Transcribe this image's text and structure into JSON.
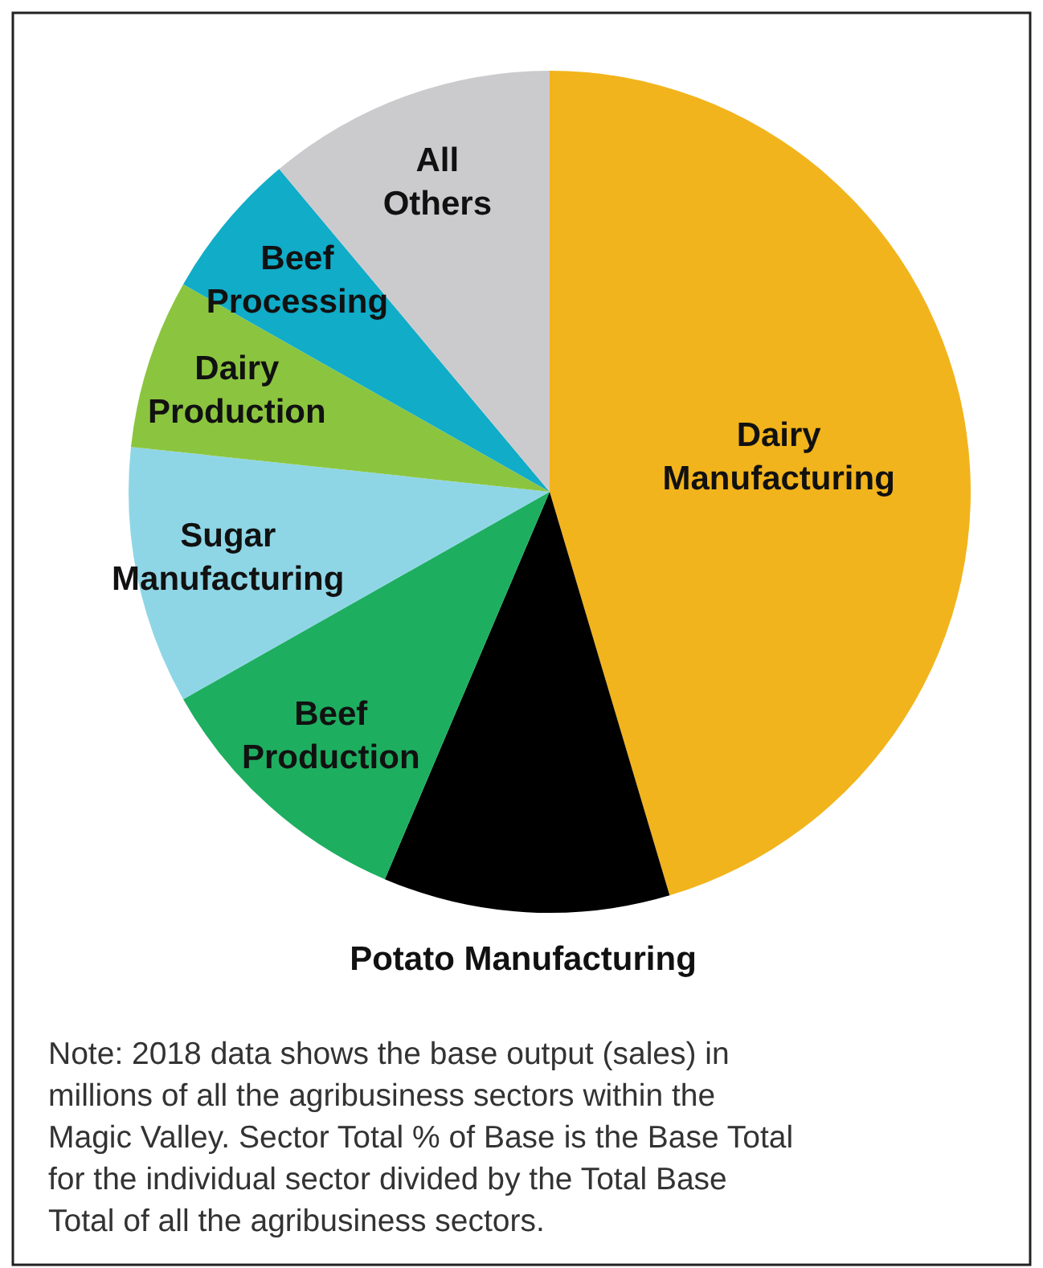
{
  "chart_data": {
    "type": "pie",
    "categories": [
      "Dairy Manufacturing",
      "Potato Manufacturing",
      "Beef Production",
      "Sugar Manufacturing",
      "Dairy Production",
      "Beef Processing",
      "All Others"
    ],
    "values": [
      45.4,
      11,
      10.4,
      9.9,
      6.5,
      5.7,
      11.1
    ],
    "colors": [
      "#f2b41c",
      "#000000",
      "#1eae60",
      "#8ed6e6",
      "#8bc53f",
      "#10acc8",
      "#cbcbcd"
    ],
    "annotations": [
      "Note: 2018 data shows the base output (sales) in millions of all the agribusiness sectors within the Magic Valley. Sector Total % of Base is the Base Total for the individual sector divided by the Total Base Total of all the agribusiness sectors."
    ]
  }
}
